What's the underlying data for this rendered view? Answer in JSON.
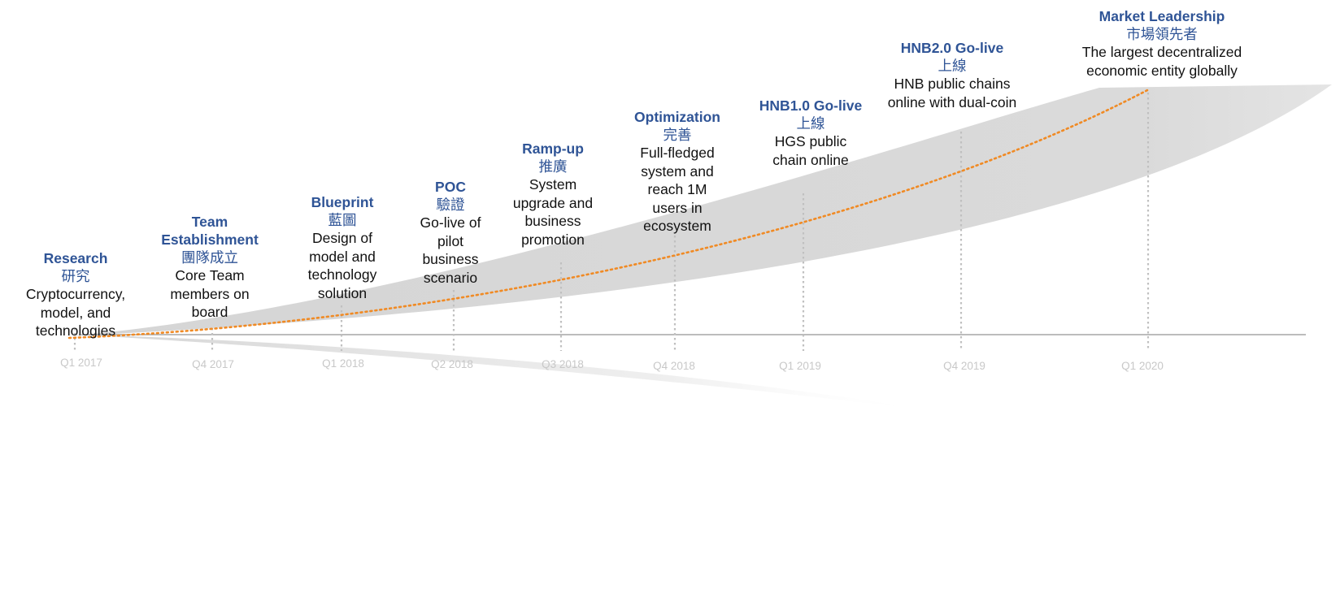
{
  "colors": {
    "title_blue": "#2f5496",
    "growth_line": "#f08a24",
    "band_fill": "#d9d9d9",
    "axis_line": "#a6a6a6",
    "marker_line": "#c0c0c0",
    "quarter_label": "#c8c8c8"
  },
  "milestones": [
    {
      "title": "Research",
      "cn": "研究",
      "desc": "Cryptocurrency, model, and technologies",
      "quarter": "Q1 2017"
    },
    {
      "title": "Team Establishment",
      "cn": "團隊成立",
      "desc": "Core Team members on board",
      "quarter": "Q4 2017"
    },
    {
      "title": "Blueprint",
      "cn": "藍圖",
      "desc": "Design of model and technology solution",
      "quarter": "Q1 2018"
    },
    {
      "title": "POC",
      "cn": "驗證",
      "desc": "Go-live of pilot business scenario",
      "quarter": "Q2 2018"
    },
    {
      "title": "Ramp-up",
      "cn": "推廣",
      "desc": "System upgrade and business promotion",
      "quarter": "Q3 2018"
    },
    {
      "title": "Optimization",
      "cn": "完善",
      "desc": "Full-fledged system and reach 1M users in ecosystem",
      "quarter": "Q4 2018"
    },
    {
      "title": "HNB1.0 Go-live",
      "cn": "上線",
      "desc": "HGS public chain online",
      "quarter": "Q1 2019"
    },
    {
      "title": "HNB2.0 Go-live",
      "cn": "上線",
      "desc": "HNB public chains online with dual-coin",
      "quarter": "Q4 2019"
    },
    {
      "title": "Market Leadership",
      "cn": "市場領先者",
      "desc": "The largest decentralized economic entity globally",
      "quarter": "Q1 2020"
    }
  ]
}
